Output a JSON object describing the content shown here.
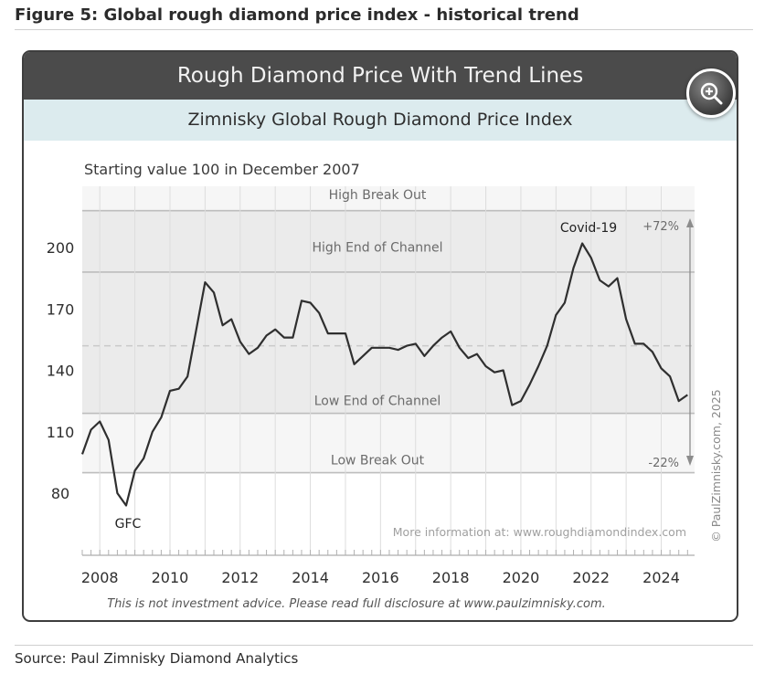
{
  "figure_title": "Figure 5: Global rough diamond price index - historical trend",
  "card": {
    "header": "Rough Diamond Price With Trend Lines",
    "subheader": "Zimnisky Global Rough Diamond Price Index",
    "zoom_icon": "zoom-in-icon"
  },
  "source": "Source: Paul Zimnisky Diamond Analytics",
  "chart_data": {
    "type": "line",
    "title": "Zimnisky Global Rough Diamond Price Index",
    "subtitle": "Starting value 100 in December 2007",
    "xlim": [
      2007.5,
      2024.95
    ],
    "ylim": [
      70,
      225
    ],
    "x_ticks": [
      2008,
      2010,
      2012,
      2014,
      2016,
      2018,
      2020,
      2022,
      2024
    ],
    "y_ticks": [
      80,
      110,
      140,
      170,
      200
    ],
    "line_color": "#2f2f2f",
    "series": [
      {
        "x": [
          2007.5,
          2007.75,
          2008.0,
          2008.25,
          2008.5,
          2008.75,
          2009.0,
          2009.25,
          2009.5,
          2009.75,
          2010.0,
          2010.25,
          2010.5,
          2010.75,
          2011.0,
          2011.25,
          2011.5,
          2011.75,
          2012.0,
          2012.25,
          2012.5,
          2012.75,
          2013.0,
          2013.25,
          2013.5,
          2013.75,
          2014.0,
          2014.25,
          2014.5,
          2014.75,
          2015.0,
          2015.25,
          2015.5,
          2015.75,
          2016.0,
          2016.25,
          2016.5,
          2016.75,
          2017.0,
          2017.25,
          2017.5,
          2017.75,
          2018.0,
          2018.25,
          2018.5,
          2018.75,
          2019.0,
          2019.25,
          2019.5,
          2019.75,
          2020.0,
          2020.25,
          2020.5,
          2020.75,
          2021.0,
          2021.25,
          2021.5,
          2021.75,
          2022.0,
          2022.25,
          2022.5,
          2022.75,
          2023.0,
          2023.25,
          2023.5,
          2023.75,
          2024.0,
          2024.25,
          2024.5,
          2024.75
        ],
        "values": [
          99,
          111,
          115,
          106,
          80,
          74,
          91,
          97,
          110,
          117,
          130,
          131,
          137,
          160,
          183,
          178,
          162,
          165,
          154,
          148,
          151,
          157,
          160,
          156,
          156,
          174,
          173,
          168,
          158,
          158,
          158,
          143,
          147,
          151,
          151,
          151,
          150,
          152,
          153,
          147,
          152,
          156,
          159,
          151,
          146,
          148,
          142,
          139,
          140,
          123,
          125,
          133,
          142,
          152,
          167,
          173,
          190,
          202,
          195,
          184,
          181,
          185,
          165,
          153,
          153,
          149,
          141,
          137,
          125,
          128
        ]
      }
    ],
    "bands": [
      {
        "label": "High Break Out",
        "from": 218,
        "to": 233
      },
      {
        "label": "High End of Channel",
        "from": 188,
        "to": 218
      },
      {
        "label": "Low End of Channel",
        "from": 119,
        "to": 188
      },
      {
        "label": "Low Break Out",
        "from": 90,
        "to": 119
      }
    ],
    "band_color": "#ebebeb",
    "midline": 152,
    "annotations": {
      "covid": "Covid-19",
      "gfc": "GFC",
      "up_pct": "+72%",
      "down_pct": "-22%",
      "more_info": "More information at: www.roughdiamondindex.com",
      "copyright": "© PaulZimnisky.com, 2025",
      "disclaimer": "This is not investment advice. Please read full disclosure at www.paulzimnisky.com."
    },
    "xlabel": "",
    "ylabel": "",
    "grid": true
  }
}
